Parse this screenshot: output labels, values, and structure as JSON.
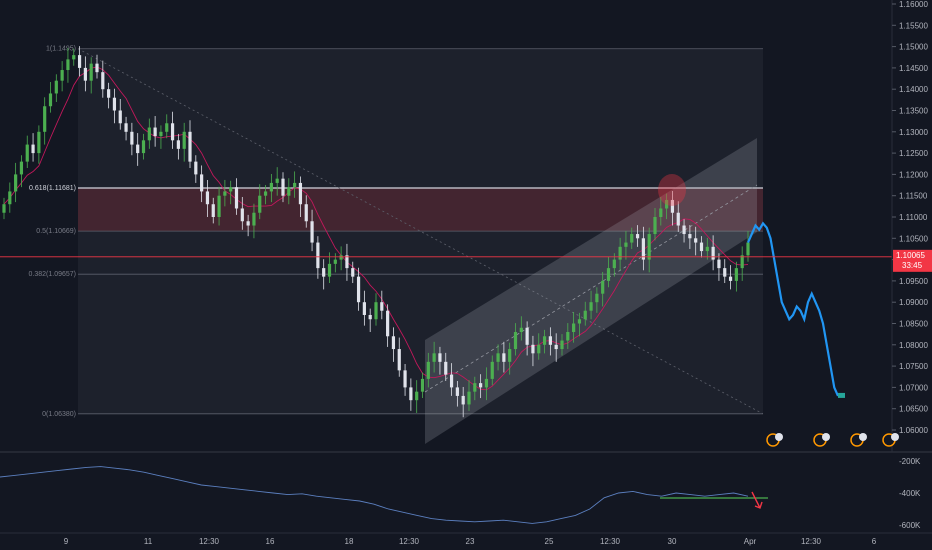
{
  "chart_data": {
    "type": "candlestick",
    "symbol_price_tag": "1.10065",
    "countdown_tag": "33:45",
    "price_axis": {
      "ticks": [
        "1.16000",
        "1.15500",
        "1.15000",
        "1.14500",
        "1.14000",
        "1.13500",
        "1.13000",
        "1.12500",
        "1.12000",
        "1.11500",
        "1.11000",
        "1.10500",
        "1.10000",
        "1.09500",
        "1.09000",
        "1.08500",
        "1.08000",
        "1.07500",
        "1.07000",
        "1.06500",
        "1.06000"
      ],
      "ylim": [
        1.0575,
        1.1615
      ]
    },
    "time_axis": {
      "ticks": [
        "9",
        "11",
        "12:30",
        "16",
        "18",
        "12:30",
        "23",
        "25",
        "12:30",
        "30",
        "Apr",
        "12:30",
        "6"
      ]
    },
    "fib_levels": [
      {
        "label": "1(1.1495)",
        "price": 1.1495,
        "emphasis": false
      },
      {
        "label": "0.618(1.11681)",
        "price": 1.11681,
        "emphasis": true
      },
      {
        "label": "0.5(1.10669)",
        "price": 1.10669,
        "emphasis": false
      },
      {
        "label": "0.382(1.09657)",
        "price": 1.09657,
        "emphasis": false
      },
      {
        "label": "0(1.06380)",
        "price": 1.0638,
        "emphasis": false
      }
    ],
    "current_price": 1.10065,
    "candles_close": [
      1.113,
      1.116,
      1.12,
      1.123,
      1.127,
      1.125,
      1.13,
      1.136,
      1.139,
      1.142,
      1.1445,
      1.147,
      1.148,
      1.145,
      1.142,
      1.146,
      1.144,
      1.14,
      1.138,
      1.135,
      1.132,
      1.13,
      1.127,
      1.125,
      1.128,
      1.131,
      1.129,
      1.13,
      1.132,
      1.128,
      1.126,
      1.13,
      1.123,
      1.12,
      1.116,
      1.113,
      1.11,
      1.115,
      1.116,
      1.117,
      1.112,
      1.109,
      1.108,
      1.111,
      1.115,
      1.116,
      1.118,
      1.119,
      1.115,
      1.117,
      1.118,
      1.113,
      1.109,
      1.104,
      1.098,
      1.096,
      1.099,
      1.1,
      1.101,
      1.098,
      1.096,
      1.09,
      1.087,
      1.086,
      1.09,
      1.088,
      1.082,
      1.079,
      1.074,
      1.07,
      1.067,
      1.069,
      1.072,
      1.076,
      1.078,
      1.076,
      1.073,
      1.07,
      1.068,
      1.066,
      1.069,
      1.071,
      1.07,
      1.072,
      1.076,
      1.078,
      1.076,
      1.079,
      1.083,
      1.084,
      1.08,
      1.078,
      1.08,
      1.082,
      1.08,
      1.079,
      1.081,
      1.083,
      1.085,
      1.086,
      1.088,
      1.09,
      1.092,
      1.095,
      1.098,
      1.1,
      1.103,
      1.104,
      1.106,
      1.105,
      1.1,
      1.106,
      1.11,
      1.112,
      1.114,
      1.111,
      1.108,
      1.106,
      1.105,
      1.104,
      1.102,
      1.103,
      1.1,
      1.098,
      1.096,
      1.095,
      1.098,
      1.101,
      1.104
    ],
    "projection_path": [
      1.104,
      1.106,
      1.108,
      1.107,
      1.1085,
      1.1075,
      1.105,
      1.1,
      1.095,
      1.09,
      1.088,
      1.086,
      1.087,
      1.089,
      1.088,
      1.086,
      1.09,
      1.092,
      1.09,
      1.088,
      1.085,
      1.08,
      1.075,
      1.07,
      1.068
    ],
    "indicator": {
      "axis_ticks": [
        "-200K",
        "-400K",
        "-600K"
      ],
      "ylim": [
        -650000,
        -150000
      ],
      "values": [
        -300000,
        -290000,
        -280000,
        -270000,
        -260000,
        -250000,
        -240000,
        -235000,
        -245000,
        -255000,
        -270000,
        -290000,
        -310000,
        -330000,
        -350000,
        -360000,
        -370000,
        -380000,
        -390000,
        -400000,
        -410000,
        -405000,
        -420000,
        -430000,
        -440000,
        -450000,
        -470000,
        -500000,
        -520000,
        -540000,
        -560000,
        -570000,
        -575000,
        -580000,
        -575000,
        -570000,
        -580000,
        -590000,
        -580000,
        -560000,
        -540000,
        -500000,
        -430000,
        -400000,
        -390000,
        -410000,
        -420000,
        -400000,
        -410000,
        -420000,
        -410000,
        -400000,
        -420000
      ]
    }
  },
  "icons": [
    "event-flag-icon",
    "event-flag-icon",
    "event-flag-icon",
    "event-flag-icon"
  ],
  "colors": {
    "background": "#131722",
    "candle_up": "#4caf50",
    "candle_down": "#e0e3eb",
    "projection": "#2196f3",
    "price_line": "#f23645",
    "channel": "rgba(178,181,190,0.22)",
    "fib_zone": "rgba(242,54,69,0.18)"
  }
}
